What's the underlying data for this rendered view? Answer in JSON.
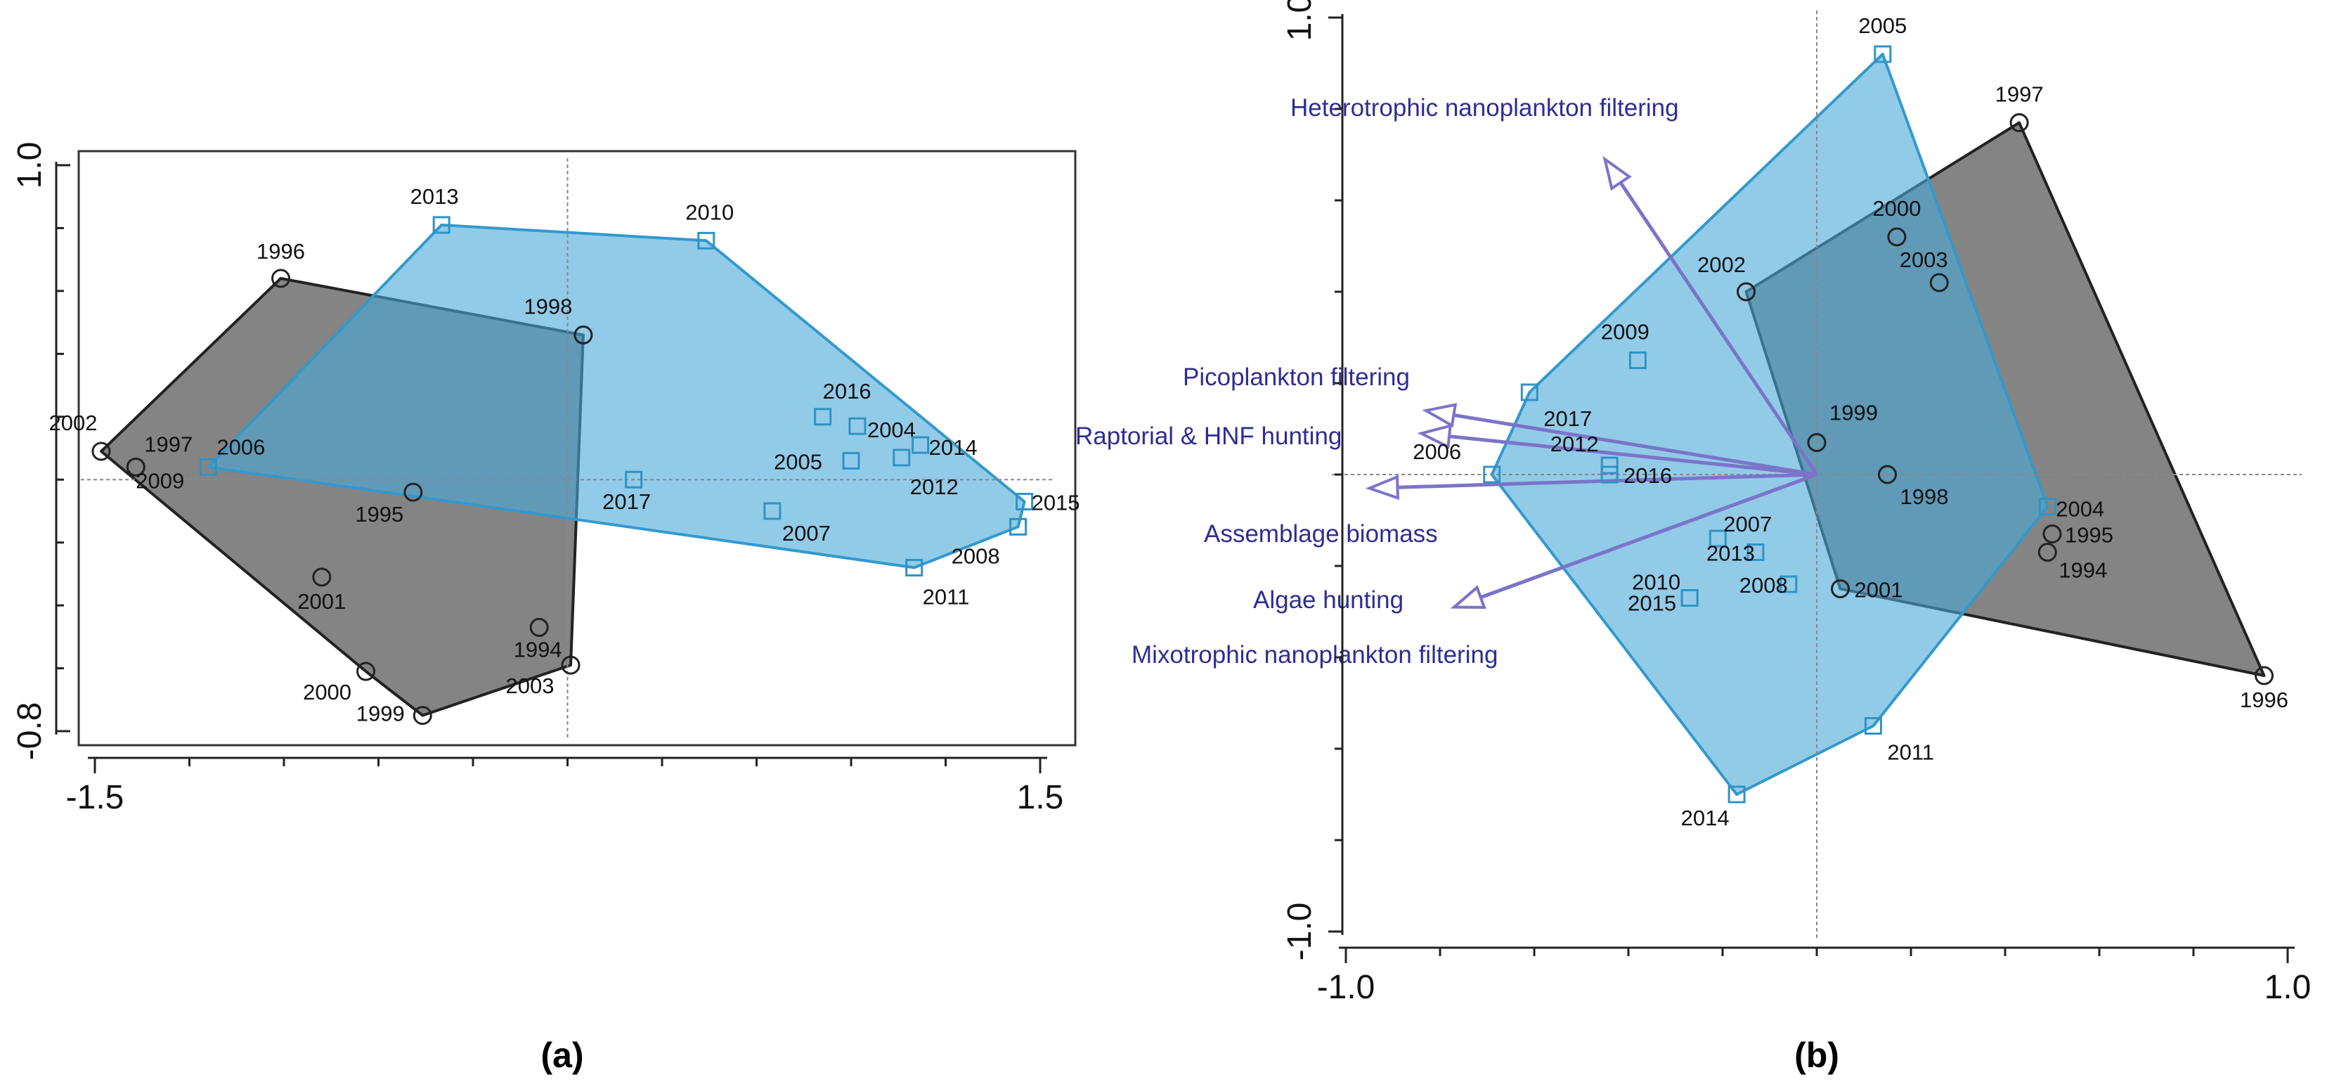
{
  "chart_data": [
    {
      "type": "scatter",
      "panel_label": "(a)",
      "xlim": [
        -1.5,
        1.5
      ],
      "ylim": [
        -0.8,
        1.0
      ],
      "x_ticks": [
        "-1.5",
        "1.5"
      ],
      "y_ticks": [
        "1.0",
        "-0.8"
      ],
      "series": [
        {
          "name": "",
          "marker": "circle",
          "color": "#222222",
          "fill": "#6e6e6e",
          "hull": [
            "1996",
            "1998",
            "2003",
            "1999",
            "2000",
            "2002"
          ],
          "points": [
            {
              "label": "1996",
              "x": -0.91,
              "y": 0.64
            },
            {
              "label": "1998",
              "x": 0.05,
              "y": 0.46
            },
            {
              "label": "2002",
              "x": -1.48,
              "y": 0.09
            },
            {
              "label": "1997",
              "x": -1.37,
              "y": 0.04
            },
            {
              "label": "2009",
              "x": -1.37,
              "y": 0.04
            },
            {
              "label": "1995",
              "x": -0.49,
              "y": -0.04
            },
            {
              "label": "2001",
              "x": -0.78,
              "y": -0.31
            },
            {
              "label": "1994",
              "x": -0.09,
              "y": -0.47
            },
            {
              "label": "2000",
              "x": -0.64,
              "y": -0.61
            },
            {
              "label": "2003",
              "x": 0.01,
              "y": -0.59
            },
            {
              "label": "1999",
              "x": -0.46,
              "y": -0.75
            }
          ]
        },
        {
          "name": "",
          "marker": "square",
          "color": "#3399cc",
          "fill": "#4aa8d8",
          "hull": [
            "2013",
            "2010",
            "2015",
            "2008",
            "2011",
            "2006"
          ],
          "points": [
            {
              "label": "2013",
              "x": -0.4,
              "y": 0.81
            },
            {
              "label": "2010",
              "x": 0.44,
              "y": 0.76
            },
            {
              "label": "2006",
              "x": -1.14,
              "y": 0.04
            },
            {
              "label": "2017",
              "x": 0.21,
              "y": 0.0
            },
            {
              "label": "2016",
              "x": 0.81,
              "y": 0.2
            },
            {
              "label": "2004",
              "x": 0.92,
              "y": 0.17
            },
            {
              "label": "2005",
              "x": 0.9,
              "y": 0.06
            },
            {
              "label": "2014",
              "x": 1.12,
              "y": 0.11
            },
            {
              "label": "2012",
              "x": 1.06,
              "y": 0.07
            },
            {
              "label": "2007",
              "x": 0.65,
              "y": -0.1
            },
            {
              "label": "2015",
              "x": 1.45,
              "y": -0.07
            },
            {
              "label": "2008",
              "x": 1.43,
              "y": -0.15
            },
            {
              "label": "2011",
              "x": 1.1,
              "y": -0.28
            }
          ]
        }
      ]
    },
    {
      "type": "scatter",
      "panel_label": "(b)",
      "xlim": [
        -1.0,
        1.0
      ],
      "ylim": [
        -1.0,
        1.0
      ],
      "x_ticks": [
        "-1.0",
        "1.0"
      ],
      "y_ticks": [
        "1.0",
        "-1.0"
      ],
      "series": [
        {
          "name": "",
          "marker": "circle",
          "color": "#222222",
          "fill": "#6e6e6e",
          "hull": [
            "1997",
            "1996",
            "2001",
            "2002"
          ],
          "points": [
            {
              "label": "1997",
              "x": 0.43,
              "y": 0.77
            },
            {
              "label": "2000",
              "x": 0.17,
              "y": 0.52
            },
            {
              "label": "2003",
              "x": 0.26,
              "y": 0.42
            },
            {
              "label": "2002",
              "x": -0.15,
              "y": 0.4
            },
            {
              "label": "1999",
              "x": 0.0,
              "y": 0.07
            },
            {
              "label": "1998",
              "x": 0.15,
              "y": 0.0
            },
            {
              "label": "1995",
              "x": 0.5,
              "y": -0.13
            },
            {
              "label": "1994",
              "x": 0.49,
              "y": -0.17
            },
            {
              "label": "2001",
              "x": 0.05,
              "y": -0.25
            },
            {
              "label": "1996",
              "x": 0.95,
              "y": -0.44
            }
          ]
        },
        {
          "name": "",
          "marker": "square",
          "color": "#3399cc",
          "fill": "#4aa8d8",
          "hull": [
            "2005",
            "2004",
            "2011",
            "2014",
            "2006",
            "2017"
          ],
          "points": [
            {
              "label": "2005",
              "x": 0.14,
              "y": 0.92
            },
            {
              "label": "2009",
              "x": -0.38,
              "y": 0.25
            },
            {
              "label": "2017",
              "x": -0.61,
              "y": 0.18
            },
            {
              "label": "2006",
              "x": -0.69,
              "y": 0.0
            },
            {
              "label": "2012",
              "x": -0.44,
              "y": 0.02
            },
            {
              "label": "2016",
              "x": -0.44,
              "y": 0.0
            },
            {
              "label": "2004",
              "x": 0.49,
              "y": -0.07
            },
            {
              "label": "2007",
              "x": -0.21,
              "y": -0.14
            },
            {
              "label": "2013",
              "x": -0.13,
              "y": -0.17
            },
            {
              "label": "2010",
              "x": -0.27,
              "y": -0.27
            },
            {
              "label": "2015",
              "x": -0.27,
              "y": -0.27
            },
            {
              "label": "2008",
              "x": -0.06,
              "y": -0.24
            },
            {
              "label": "2011",
              "x": 0.12,
              "y": -0.55
            },
            {
              "label": "2014",
              "x": -0.17,
              "y": -0.7
            }
          ]
        }
      ],
      "arrows": [
        {
          "label": "Heterotrophic nanoplankton filtering",
          "x": -0.45,
          "y": 0.69
        },
        {
          "label": "Picoplankton filtering",
          "x": -0.83,
          "y": 0.14
        },
        {
          "label": "Raptorial & HNF hunting",
          "x": -0.84,
          "y": 0.09
        },
        {
          "label": "Assemblage biomass",
          "x": -0.95,
          "y": -0.03
        },
        {
          "label": "Algae hunting",
          "x": -0.77,
          "y": -0.29
        },
        {
          "label": "Mixotrophic nanoplankton filtering",
          "x": -0.77,
          "y": -0.29
        }
      ]
    }
  ]
}
